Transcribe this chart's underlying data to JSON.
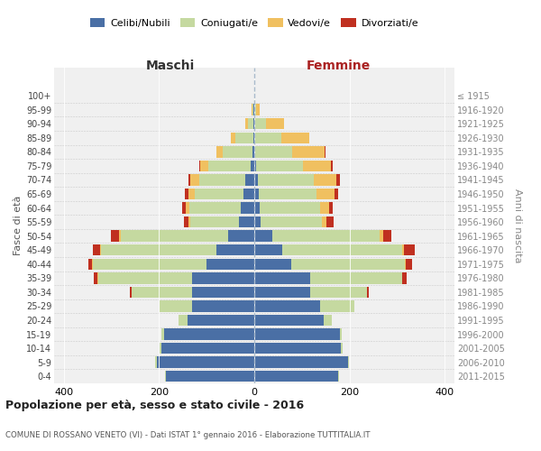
{
  "age_groups": [
    "0-4",
    "5-9",
    "10-14",
    "15-19",
    "20-24",
    "25-29",
    "30-34",
    "35-39",
    "40-44",
    "45-49",
    "50-54",
    "55-59",
    "60-64",
    "65-69",
    "70-74",
    "75-79",
    "80-84",
    "85-89",
    "90-94",
    "95-99",
    "100+"
  ],
  "birth_years": [
    "2011-2015",
    "2006-2010",
    "2001-2005",
    "1996-2000",
    "1991-1995",
    "1986-1990",
    "1981-1985",
    "1976-1980",
    "1971-1975",
    "1966-1970",
    "1961-1965",
    "1956-1960",
    "1951-1955",
    "1946-1950",
    "1941-1945",
    "1936-1940",
    "1931-1935",
    "1926-1930",
    "1921-1925",
    "1916-1920",
    "≤ 1915"
  ],
  "colors": {
    "celibe": "#4a6fa5",
    "coniugato": "#c5d9a0",
    "vedovo": "#f0c060",
    "divorziato": "#c03020"
  },
  "maschi": {
    "celibe": [
      185,
      205,
      195,
      190,
      140,
      130,
      130,
      130,
      100,
      80,
      55,
      32,
      28,
      22,
      18,
      8,
      4,
      2,
      1,
      1,
      0
    ],
    "coniugato": [
      2,
      3,
      4,
      5,
      18,
      68,
      128,
      198,
      238,
      242,
      225,
      102,
      108,
      102,
      98,
      88,
      62,
      38,
      12,
      2,
      0
    ],
    "vedovo": [
      0,
      0,
      0,
      0,
      0,
      1,
      0,
      1,
      2,
      2,
      3,
      4,
      8,
      14,
      18,
      18,
      14,
      10,
      5,
      2,
      0
    ],
    "divorziato": [
      0,
      0,
      0,
      0,
      0,
      0,
      4,
      7,
      9,
      14,
      18,
      10,
      7,
      7,
      4,
      2,
      0,
      0,
      0,
      0,
      0
    ]
  },
  "femmine": {
    "nubile": [
      176,
      196,
      182,
      180,
      145,
      138,
      118,
      118,
      78,
      58,
      38,
      14,
      11,
      9,
      7,
      4,
      2,
      2,
      0,
      0,
      0
    ],
    "coniugata": [
      1,
      2,
      3,
      4,
      18,
      72,
      118,
      192,
      238,
      252,
      225,
      128,
      128,
      122,
      118,
      98,
      78,
      55,
      25,
      4,
      1
    ],
    "vedova": [
      0,
      0,
      0,
      0,
      0,
      0,
      0,
      1,
      2,
      4,
      7,
      9,
      18,
      38,
      48,
      58,
      68,
      58,
      38,
      8,
      1
    ],
    "divorziata": [
      0,
      0,
      0,
      0,
      0,
      0,
      4,
      9,
      14,
      22,
      18,
      16,
      7,
      7,
      7,
      4,
      2,
      0,
      0,
      0,
      0
    ]
  },
  "title": "Popolazione per età, sesso e stato civile - 2016",
  "subtitle": "COMUNE DI ROSSANO VENETO (VI) - Dati ISTAT 1° gennaio 2016 - Elaborazione TUTTITALIA.IT",
  "ylabel_left": "Fasce di età",
  "ylabel_right": "Anni di nascita",
  "xlabel_left": "Maschi",
  "xlabel_right": "Femmine",
  "xlim": 420,
  "legend_labels": [
    "Celibi/Nubili",
    "Coniugati/e",
    "Vedovi/e",
    "Divorziati/e"
  ],
  "bg_color": "#f0f0f0",
  "header_color_maschi": "#333333",
  "header_color_femmine": "#aa2222"
}
